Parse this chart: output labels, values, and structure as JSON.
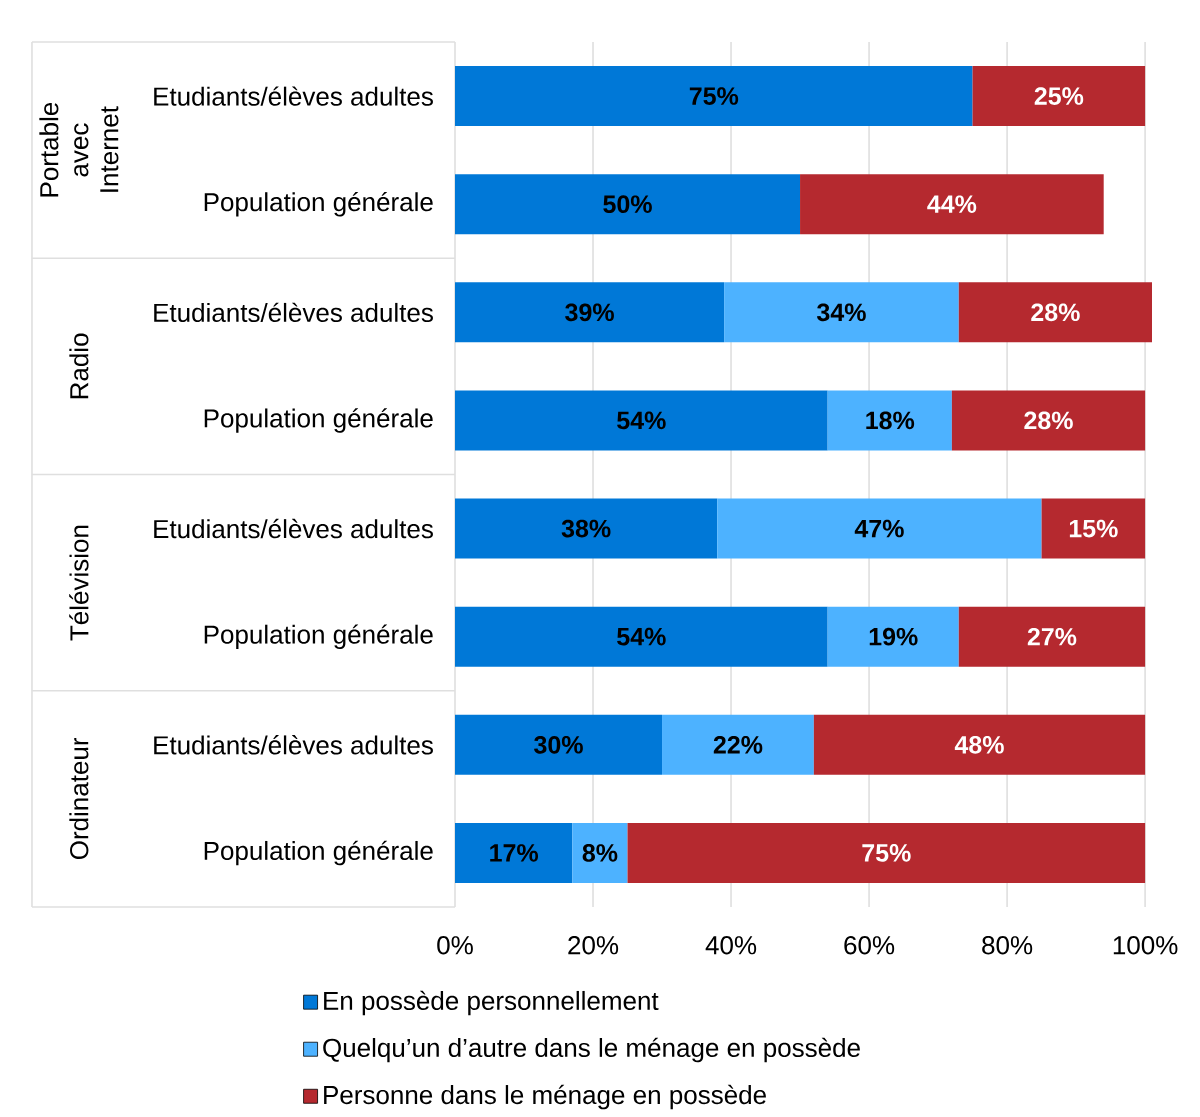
{
  "chart_data": {
    "type": "bar",
    "orientation": "horizontal",
    "stacked": true,
    "categories": [
      "Etudiants/élèves adultes",
      "Population générale",
      "Etudiants/élèves adultes",
      "Population générale",
      "Etudiants/élèves adultes",
      "Population générale",
      "Etudiants/élèves adultes",
      "Population générale"
    ],
    "annotations": [
      "Portable avec Internet",
      "Radio",
      "Télévision",
      "Ordinateur"
    ],
    "series": [
      {
        "name": "En possède personnellement",
        "color": "#0078d7",
        "values": [
          75,
          50,
          39,
          54,
          38,
          54,
          30,
          17
        ],
        "value_labels": [
          "75%",
          "50%",
          "39%",
          "54%",
          "38%",
          "54%",
          "30%",
          "17%"
        ]
      },
      {
        "name": "Quelqu’un d’autre dans le ménage en possède",
        "color": "#4db2ff",
        "values": [
          null,
          null,
          34,
          18,
          47,
          19,
          22,
          8
        ],
        "value_labels": [
          null,
          null,
          "34%",
          "18%",
          "47%",
          "19%",
          "22%",
          "8%"
        ]
      },
      {
        "name": "Personne dans le ménage en possède",
        "color": "#b5292f",
        "values": [
          25,
          44,
          28,
          28,
          15,
          27,
          48,
          75
        ],
        "value_labels": [
          "25%",
          "44%",
          "28%",
          "28%",
          "15%",
          "27%",
          "48%",
          "75%"
        ]
      }
    ],
    "xlim": [
      0,
      101
    ],
    "xticks": [
      {
        "value": 0,
        "label": "0%"
      },
      {
        "value": 20,
        "label": "20%"
      },
      {
        "value": 40,
        "label": "40%"
      },
      {
        "value": 60,
        "label": "60%"
      },
      {
        "value": 80,
        "label": "80%"
      },
      {
        "value": 100,
        "label": "100%"
      }
    ],
    "grid": "x",
    "legend": "bottom"
  }
}
